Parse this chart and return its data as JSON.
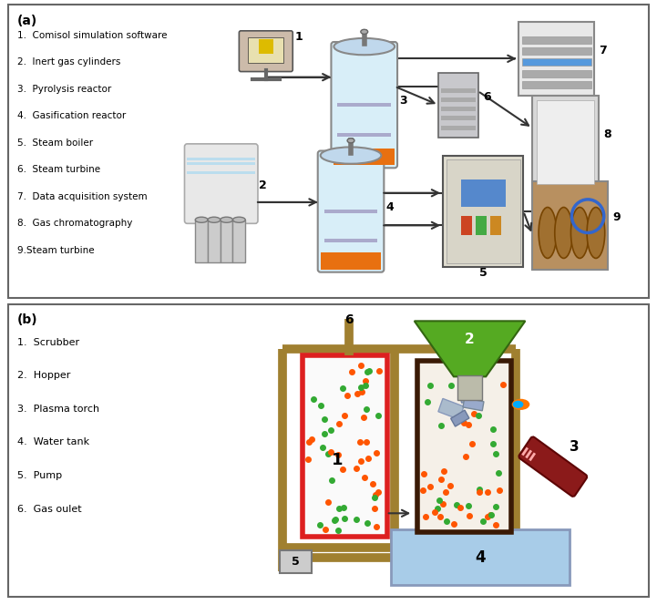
{
  "fig_width": 7.21,
  "fig_height": 6.64,
  "bg_color": "#ffffff",
  "panel_a": {
    "label": "(a)",
    "legend": [
      "1.  Comisol simulation software",
      "2.  Inert gas cylinders",
      "3.  Pyrolysis reactor",
      "4.  Gasification reactor",
      "5.  Steam boiler",
      "6.  Steam turbine",
      "7.  Data acquisition system",
      "8.  Gas chromatography",
      "9.Steam turbine"
    ]
  },
  "panel_b": {
    "label": "(b)",
    "legend": [
      "1.  Scrubber",
      "2.  Hopper",
      "3.  Plasma torch",
      "4.  Water tank",
      "5.  Pump",
      "6.  Gas oulet"
    ]
  }
}
